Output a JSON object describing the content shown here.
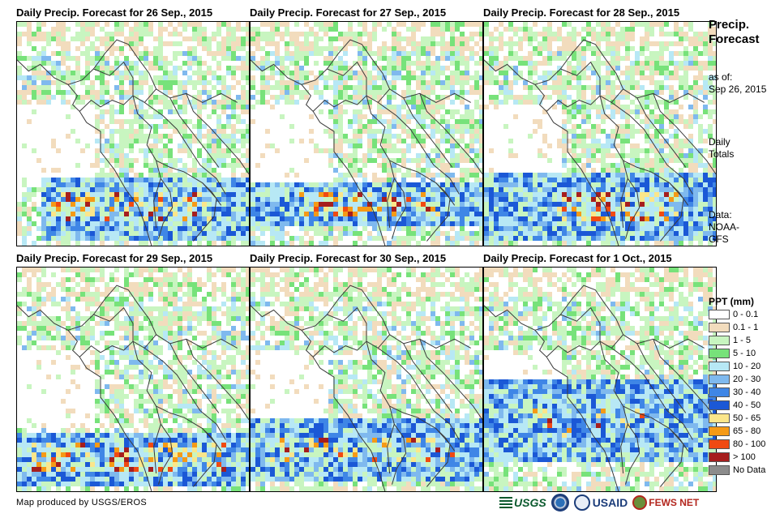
{
  "panels": [
    {
      "title": "Daily Precip. Forecast for 26 Sep., 2015",
      "seed": 11,
      "band": [
        0.68,
        0.96
      ],
      "core": [
        0.14,
        0.62,
        0.82
      ],
      "intensity": 0.75,
      "band_left": 0.1
    },
    {
      "title": "Daily Precip. Forecast for 27 Sep., 2015",
      "seed": 23,
      "band": [
        0.7,
        0.9
      ],
      "core": [
        0.2,
        0.6,
        0.8
      ],
      "intensity": 0.8,
      "band_left": 0.0
    },
    {
      "title": "Daily Precip. Forecast for 28 Sep., 2015",
      "seed": 37,
      "band": [
        0.66,
        0.96
      ],
      "core": [
        0.3,
        0.66,
        0.82
      ],
      "intensity": 1.0,
      "band_left": 0.0
    },
    {
      "title": "Daily Precip. Forecast for 29 Sep., 2015",
      "seed": 41,
      "band": [
        0.72,
        0.96
      ],
      "core": [
        0.05,
        0.68,
        0.88
      ],
      "intensity": 0.85,
      "band_left": 0.0
    },
    {
      "title": "Daily Precip. Forecast for 30 Sep., 2015",
      "seed": 53,
      "band": [
        0.66,
        0.94
      ],
      "core": [
        0.05,
        0.74,
        0.86
      ],
      "intensity": 0.6,
      "band_left": 0.0
    },
    {
      "title": "Daily Precip. Forecast for 1 Oct., 2015",
      "seed": 67,
      "band": [
        0.5,
        0.86
      ],
      "core": [
        0.2,
        0.6,
        0.7
      ],
      "intensity": 0.2,
      "band_left": 0.0
    }
  ],
  "side": {
    "title_line1": "Precip.",
    "title_line2": "Forecast",
    "asof_label": "as of:",
    "asof_date": "Sep 26, 2015",
    "totals_line1": "Daily",
    "totals_line2": "Totals",
    "data_line1": "Data:",
    "data_line2": "NOAA-",
    "data_line3": "GFS"
  },
  "legend": {
    "title": "PPT (mm)",
    "items": [
      {
        "label": "0 - 0.1",
        "color": "#ffffff"
      },
      {
        "label": "0.1 - 1",
        "color": "#f2dcbd"
      },
      {
        "label": "1 - 5",
        "color": "#c8f5c0"
      },
      {
        "label": "5 - 10",
        "color": "#77e27a"
      },
      {
        "label": "10 - 20",
        "color": "#b7e8f5"
      },
      {
        "label": "20 - 30",
        "color": "#7fb9ee"
      },
      {
        "label": "30 - 40",
        "color": "#3f86e6"
      },
      {
        "label": "40 - 50",
        "color": "#1b58d6"
      },
      {
        "label": "50 - 65",
        "color": "#fbe68a"
      },
      {
        "label": "65 - 80",
        "color": "#f59a16"
      },
      {
        "label": "80 - 100",
        "color": "#f04a12"
      },
      {
        "label": "> 100",
        "color": "#a61e1e"
      },
      {
        "label": "No Data",
        "color": "#8c8c8c"
      }
    ]
  },
  "credit": "Map produced by USGS/EROS",
  "logos": {
    "usgs": "USGS",
    "usaid": "USAID",
    "fews": "FEWS NET"
  }
}
